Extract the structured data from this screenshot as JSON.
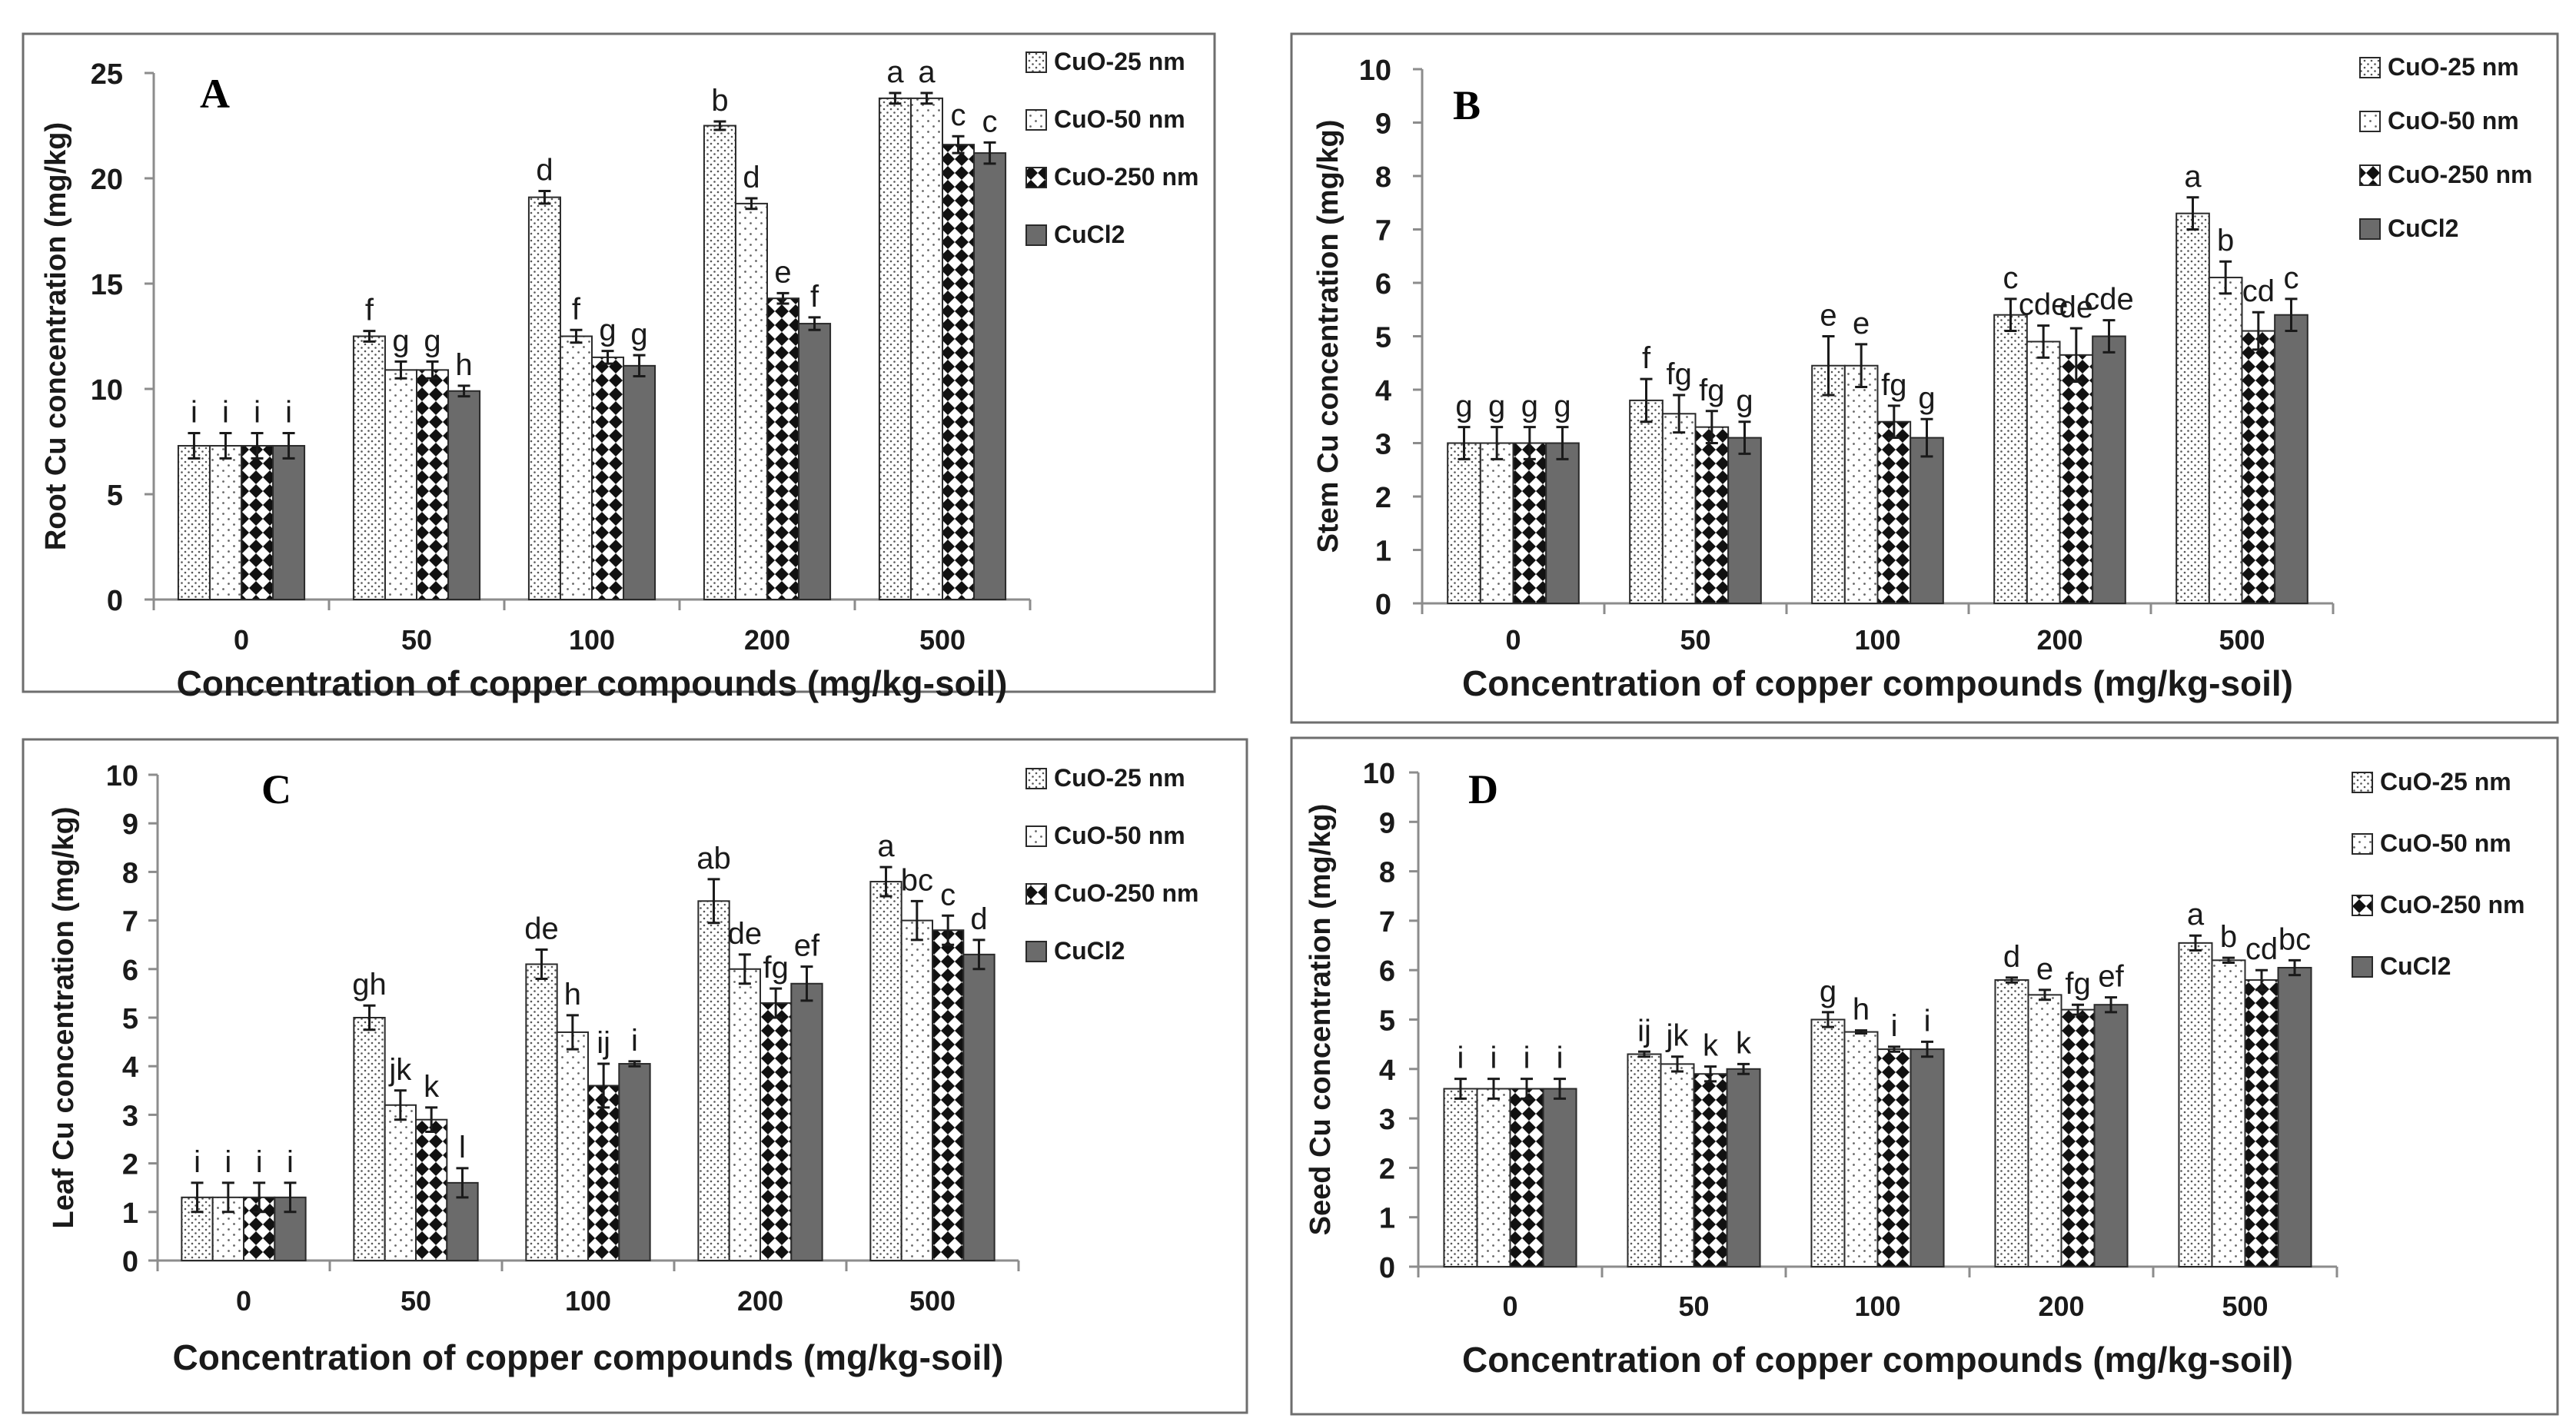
{
  "colors": {
    "frame": "#6e6e6e",
    "axis": "#8c8c8c",
    "text": "#1a1a1a",
    "solid_bar": "#6b6b6b"
  },
  "legend": [
    {
      "label": "CuO-25 nm",
      "pattern": "dots-dense"
    },
    {
      "label": "CuO-50 nm",
      "pattern": "dots-sparse"
    },
    {
      "label": "CuO-250 nm",
      "pattern": "diamonds"
    },
    {
      "label": "CuCl2",
      "pattern": "solid-gray"
    }
  ],
  "chart_data": [
    {
      "panel": "A",
      "type": "bar",
      "xlabel": "Concentration of copper compounds (mg/kg-soil)",
      "ylabel": "Root Cu concentration (mg/kg)",
      "ylim": [
        0,
        25
      ],
      "yticks": [
        0,
        5,
        10,
        15,
        20,
        25
      ],
      "categories": [
        "0",
        "50",
        "100",
        "200",
        "500"
      ],
      "series": [
        {
          "name": "CuO-25 nm",
          "values": [
            7.3,
            12.5,
            19.1,
            22.5,
            23.8
          ],
          "errors": [
            0.6,
            0.25,
            0.3,
            0.2,
            0.25
          ],
          "letters": [
            "i",
            "f",
            "d",
            "b",
            "a"
          ]
        },
        {
          "name": "CuO-50 nm",
          "values": [
            7.3,
            10.9,
            12.5,
            18.8,
            23.8
          ],
          "errors": [
            0.6,
            0.4,
            0.3,
            0.25,
            0.25
          ],
          "letters": [
            "i",
            "g",
            "f",
            "d",
            "a"
          ]
        },
        {
          "name": "CuO-250 nm",
          "values": [
            7.3,
            10.9,
            11.5,
            14.3,
            21.6
          ],
          "errors": [
            0.6,
            0.4,
            0.3,
            0.25,
            0.4
          ],
          "letters": [
            "i",
            "g",
            "g",
            "e",
            "c"
          ]
        },
        {
          "name": "CuCl2",
          "values": [
            7.3,
            9.9,
            11.1,
            13.1,
            21.2
          ],
          "errors": [
            0.6,
            0.25,
            0.5,
            0.3,
            0.5
          ],
          "letters": [
            "i",
            "h",
            "g",
            "f",
            "c"
          ]
        }
      ],
      "legend_position": "top-right",
      "grid": false
    },
    {
      "panel": "B",
      "type": "bar",
      "xlabel": "Concentration of copper compounds (mg/kg-soil)",
      "ylabel": "Stem Cu concentration (mg/kg)",
      "ylim": [
        0,
        10
      ],
      "yticks": [
        0,
        1,
        2,
        3,
        4,
        5,
        6,
        7,
        8,
        9,
        10
      ],
      "categories": [
        "0",
        "50",
        "100",
        "200",
        "500"
      ],
      "series": [
        {
          "name": "CuO-25 nm",
          "values": [
            3.0,
            3.8,
            4.45,
            5.4,
            7.3
          ],
          "errors": [
            0.3,
            0.4,
            0.55,
            0.3,
            0.3
          ],
          "letters": [
            "g",
            "f",
            "e",
            "c",
            "a"
          ]
        },
        {
          "name": "CuO-50 nm",
          "values": [
            3.0,
            3.55,
            4.45,
            4.9,
            6.1
          ],
          "errors": [
            0.3,
            0.35,
            0.4,
            0.3,
            0.3
          ],
          "letters": [
            "g",
            "fg",
            "e",
            "cde",
            "b"
          ]
        },
        {
          "name": "CuO-250 nm",
          "values": [
            3.0,
            3.3,
            3.4,
            4.65,
            5.1
          ],
          "errors": [
            0.3,
            0.3,
            0.3,
            0.5,
            0.35
          ],
          "letters": [
            "g",
            "fg",
            "fg",
            "de",
            "cd"
          ]
        },
        {
          "name": "CuCl2",
          "values": [
            3.0,
            3.1,
            3.1,
            5.0,
            5.4
          ],
          "errors": [
            0.3,
            0.3,
            0.35,
            0.3,
            0.3
          ],
          "letters": [
            "g",
            "g",
            "g",
            "cde",
            "c"
          ]
        }
      ],
      "legend_position": "top-right",
      "grid": false
    },
    {
      "panel": "C",
      "type": "bar",
      "xlabel": "Concentration of copper compounds (mg/kg-soil)",
      "ylabel": "Leaf Cu concentration (mg/kg)",
      "ylim": [
        0,
        10
      ],
      "yticks": [
        0,
        1,
        2,
        3,
        4,
        5,
        6,
        7,
        8,
        9,
        10
      ],
      "categories": [
        "0",
        "50",
        "100",
        "200",
        "500"
      ],
      "series": [
        {
          "name": "CuO-25 nm",
          "values": [
            1.3,
            5.0,
            6.1,
            7.4,
            7.8
          ],
          "errors": [
            0.3,
            0.25,
            0.3,
            0.45,
            0.3
          ],
          "letters": [
            "i",
            "gh",
            "de",
            "ab",
            "a"
          ]
        },
        {
          "name": "CuO-50 nm",
          "values": [
            1.3,
            3.2,
            4.7,
            6.0,
            7.0
          ],
          "errors": [
            0.3,
            0.3,
            0.35,
            0.3,
            0.4
          ],
          "letters": [
            "i",
            "jk",
            "h",
            "de",
            "bc"
          ]
        },
        {
          "name": "CuO-250 nm",
          "values": [
            1.3,
            2.9,
            3.6,
            5.3,
            6.8
          ],
          "errors": [
            0.3,
            0.25,
            0.45,
            0.3,
            0.3
          ],
          "letters": [
            "i",
            "k",
            "ij",
            "fg",
            "c"
          ]
        },
        {
          "name": "CuCl2",
          "values": [
            1.3,
            1.6,
            4.05,
            5.7,
            6.3
          ],
          "errors": [
            0.3,
            0.3,
            0.05,
            0.35,
            0.3
          ],
          "letters": [
            "i",
            "l",
            "i",
            "ef",
            "d"
          ]
        }
      ],
      "legend_position": "top-right",
      "grid": false
    },
    {
      "panel": "D",
      "type": "bar",
      "xlabel": "Concentration of copper compounds (mg/kg-soil)",
      "ylabel": "Seed Cu concentration (mg/kg)",
      "ylim": [
        0,
        10
      ],
      "yticks": [
        0,
        1,
        2,
        3,
        4,
        5,
        6,
        7,
        8,
        9,
        10
      ],
      "categories": [
        "0",
        "50",
        "100",
        "200",
        "500"
      ],
      "series": [
        {
          "name": "CuO-25 nm",
          "values": [
            3.6,
            4.3,
            5.0,
            5.8,
            6.55
          ],
          "errors": [
            0.2,
            0.05,
            0.15,
            0.05,
            0.15
          ],
          "letters": [
            "i",
            "ij",
            "g",
            "d",
            "a"
          ]
        },
        {
          "name": "CuO-50 nm",
          "values": [
            3.6,
            4.1,
            4.75,
            5.5,
            6.2
          ],
          "errors": [
            0.2,
            0.15,
            0.03,
            0.1,
            0.05
          ],
          "letters": [
            "i",
            "jk",
            "h",
            "e",
            "b"
          ]
        },
        {
          "name": "CuO-250 nm",
          "values": [
            3.6,
            3.9,
            4.4,
            5.2,
            5.8
          ],
          "errors": [
            0.2,
            0.15,
            0.05,
            0.1,
            0.2
          ],
          "letters": [
            "i",
            "k",
            "i",
            "fg",
            "cd"
          ]
        },
        {
          "name": "CuCl2",
          "values": [
            3.6,
            4.0,
            4.4,
            5.3,
            6.05
          ],
          "errors": [
            0.2,
            0.1,
            0.15,
            0.15,
            0.15
          ],
          "letters": [
            "i",
            "k",
            "i",
            "ef",
            "bc"
          ]
        }
      ],
      "legend_position": "top-right",
      "grid": false
    }
  ]
}
